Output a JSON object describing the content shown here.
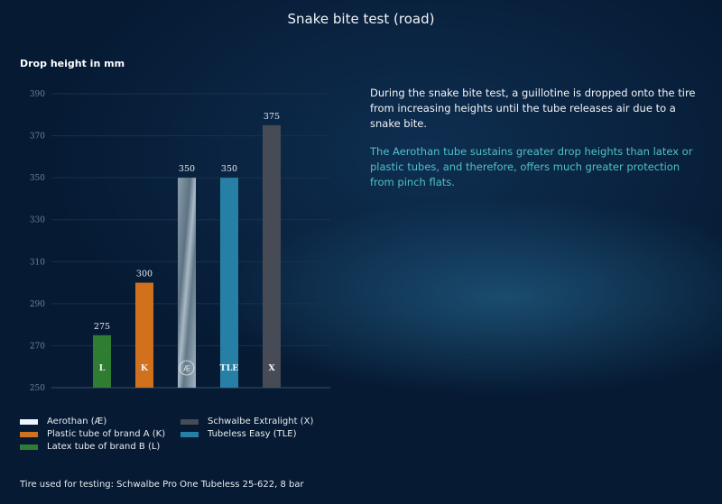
{
  "chart_data": {
    "type": "bar",
    "title": "Snake bite test (road)",
    "ylabel": "Drop height in mm",
    "ylim": [
      250,
      390
    ],
    "yticks": [
      250,
      270,
      290,
      310,
      330,
      350,
      370,
      390
    ],
    "grid": true,
    "categories": [
      "L",
      "K",
      "Æ",
      "TLE",
      "X"
    ],
    "values": [
      275,
      300,
      350,
      350,
      375
    ],
    "colors": [
      "#2e7d32",
      "#d2711d",
      "#9fb1bf",
      "#2680a6",
      "#474b55"
    ],
    "legend_position": "bottom-left",
    "legend": [
      {
        "label": "Aerothan (Æ)",
        "color": "#eef6fb"
      },
      {
        "label": "Schwalbe Extralight (X)",
        "color": "#474b55"
      },
      {
        "label": "Plastic tube of brand A (K)",
        "color": "#d2711d"
      },
      {
        "label": "Tubeless Easy (TLE)",
        "color": "#2680a6"
      },
      {
        "label": "Latex tube of brand B (L)",
        "color": "#2e7d32"
      }
    ]
  },
  "description": {
    "paragraph1": "During the snake bite test, a guillotine is dropped onto the tire from increasing heights until the tube releases air due to a snake bite.",
    "paragraph2": "The Aerothan tube sustains greater drop heights than latex or plastic tubes, and therefore, offers much greater protection from pinch flats."
  },
  "footer": "Tire used for testing: Schwalbe Pro One Tubeless 25-622, 8 bar"
}
